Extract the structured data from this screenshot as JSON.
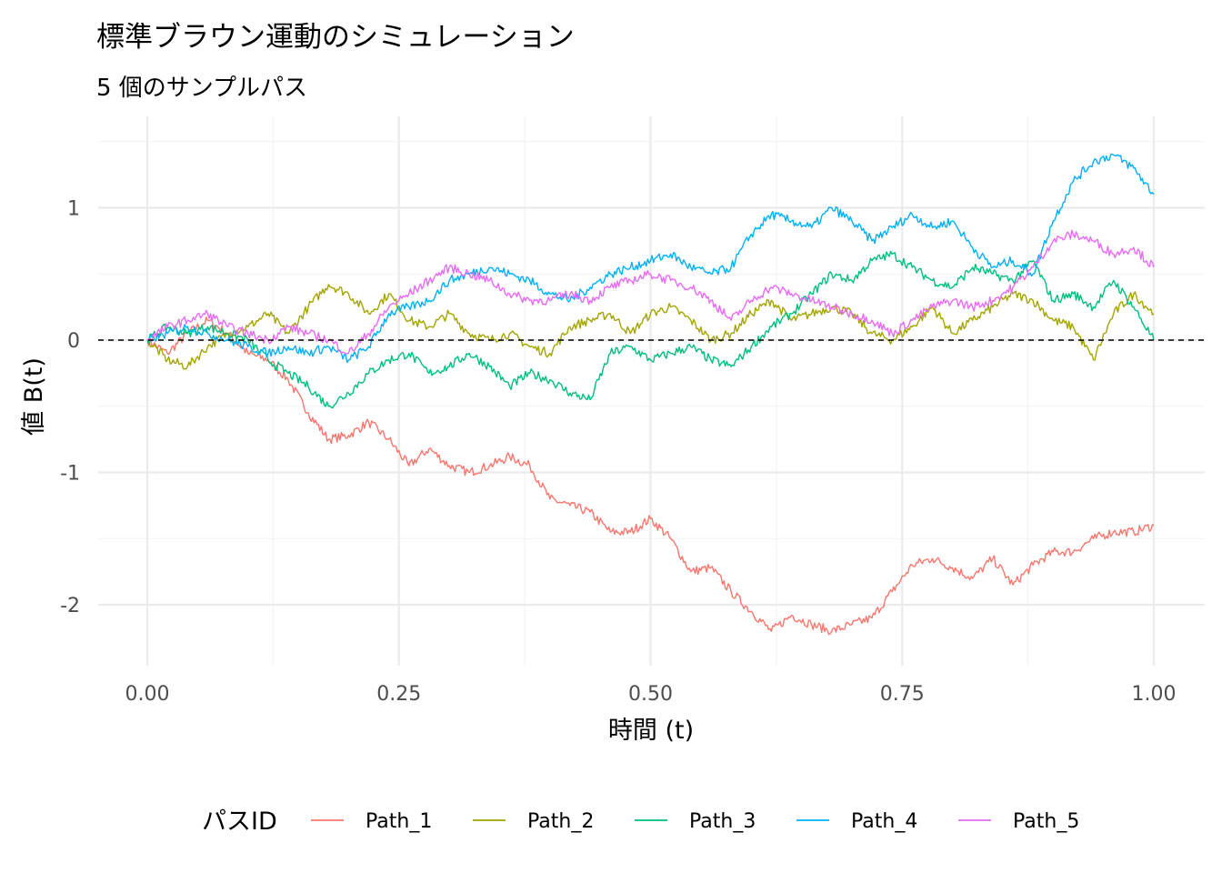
{
  "chart_data": {
    "type": "line",
    "title": "標準ブラウン運動のシミュレーション",
    "subtitle": "5 個のサンプルパス",
    "xlabel": "時間 (t)",
    "ylabel": "値 B(t)",
    "xlim": [
      0,
      1
    ],
    "ylim": [
      -2.45,
      1.6
    ],
    "x_ticks": [
      0,
      0.25,
      0.5,
      0.75,
      1
    ],
    "x_tick_labels": [
      "0.00",
      "0.25",
      "0.50",
      "0.75",
      "1.00"
    ],
    "y_ticks": [
      -2,
      -1,
      0,
      1
    ],
    "y_tick_labels": [
      "-2",
      "-1",
      "0",
      "1"
    ],
    "grid": true,
    "reference_line": {
      "y": 0,
      "style": "dashed",
      "color": "#000000"
    },
    "legend": {
      "title": "パスID",
      "position": "bottom"
    },
    "series": [
      {
        "name": "Path_1",
        "color": "#F8766D",
        "x": [
          0,
          0.02,
          0.04,
          0.06,
          0.08,
          0.1,
          0.12,
          0.14,
          0.16,
          0.18,
          0.2,
          0.22,
          0.24,
          0.26,
          0.28,
          0.3,
          0.32,
          0.34,
          0.36,
          0.38,
          0.4,
          0.42,
          0.44,
          0.46,
          0.48,
          0.5,
          0.52,
          0.54,
          0.56,
          0.58,
          0.6,
          0.62,
          0.64,
          0.66,
          0.68,
          0.7,
          0.72,
          0.74,
          0.76,
          0.78,
          0.8,
          0.82,
          0.84,
          0.86,
          0.88,
          0.9,
          0.92,
          0.94,
          0.96,
          0.98,
          1.0
        ],
        "y": [
          0.0,
          -0.1,
          0.05,
          0.15,
          0.05,
          -0.1,
          -0.15,
          -0.3,
          -0.55,
          -0.75,
          -0.72,
          -0.62,
          -0.75,
          -0.95,
          -0.82,
          -0.95,
          -1.0,
          -0.95,
          -0.88,
          -0.95,
          -1.2,
          -1.25,
          -1.3,
          -1.45,
          -1.45,
          -1.35,
          -1.5,
          -1.75,
          -1.72,
          -1.9,
          -2.05,
          -2.2,
          -2.08,
          -2.15,
          -2.2,
          -2.15,
          -2.1,
          -1.9,
          -1.7,
          -1.65,
          -1.72,
          -1.8,
          -1.65,
          -1.85,
          -1.7,
          -1.6,
          -1.6,
          -1.5,
          -1.45,
          -1.45,
          -1.4
        ]
      },
      {
        "name": "Path_2",
        "color": "#A3A500",
        "x": [
          0,
          0.02,
          0.04,
          0.06,
          0.08,
          0.1,
          0.12,
          0.14,
          0.16,
          0.18,
          0.2,
          0.22,
          0.24,
          0.26,
          0.28,
          0.3,
          0.32,
          0.34,
          0.36,
          0.38,
          0.4,
          0.42,
          0.44,
          0.46,
          0.48,
          0.5,
          0.52,
          0.54,
          0.56,
          0.58,
          0.6,
          0.62,
          0.64,
          0.66,
          0.68,
          0.7,
          0.72,
          0.74,
          0.76,
          0.78,
          0.8,
          0.82,
          0.84,
          0.86,
          0.88,
          0.9,
          0.92,
          0.94,
          0.96,
          0.98,
          1.0
        ],
        "y": [
          0.0,
          -0.15,
          -0.2,
          -0.05,
          0.05,
          0.1,
          0.2,
          0.05,
          0.25,
          0.42,
          0.35,
          0.2,
          0.35,
          0.15,
          0.1,
          0.2,
          0.05,
          0.0,
          0.05,
          -0.05,
          -0.1,
          0.1,
          0.15,
          0.2,
          0.05,
          0.2,
          0.25,
          0.15,
          0.0,
          0.05,
          0.2,
          0.3,
          0.15,
          0.2,
          0.25,
          0.2,
          0.05,
          0.0,
          0.1,
          0.25,
          0.05,
          0.15,
          0.25,
          0.35,
          0.3,
          0.15,
          0.1,
          -0.15,
          0.2,
          0.35,
          0.2
        ]
      },
      {
        "name": "Path_3",
        "color": "#00BF7D",
        "x": [
          0,
          0.02,
          0.04,
          0.06,
          0.08,
          0.1,
          0.12,
          0.14,
          0.16,
          0.18,
          0.2,
          0.22,
          0.24,
          0.26,
          0.28,
          0.3,
          0.32,
          0.34,
          0.36,
          0.38,
          0.4,
          0.42,
          0.44,
          0.46,
          0.48,
          0.5,
          0.52,
          0.54,
          0.56,
          0.58,
          0.6,
          0.62,
          0.64,
          0.66,
          0.68,
          0.7,
          0.72,
          0.74,
          0.76,
          0.78,
          0.8,
          0.82,
          0.84,
          0.86,
          0.88,
          0.9,
          0.92,
          0.94,
          0.96,
          0.98,
          1.0
        ],
        "y": [
          0.0,
          0.1,
          0.05,
          0.1,
          0.05,
          0.0,
          -0.15,
          -0.25,
          -0.35,
          -0.5,
          -0.4,
          -0.25,
          -0.15,
          -0.1,
          -0.25,
          -0.2,
          -0.1,
          -0.2,
          -0.35,
          -0.25,
          -0.3,
          -0.4,
          -0.45,
          -0.1,
          -0.05,
          -0.15,
          -0.1,
          -0.05,
          -0.15,
          -0.2,
          -0.05,
          0.1,
          0.2,
          0.35,
          0.5,
          0.45,
          0.6,
          0.65,
          0.55,
          0.45,
          0.4,
          0.55,
          0.5,
          0.45,
          0.6,
          0.3,
          0.35,
          0.25,
          0.45,
          0.25,
          0.0
        ]
      },
      {
        "name": "Path_4",
        "color": "#00B0F6",
        "x": [
          0,
          0.02,
          0.04,
          0.06,
          0.08,
          0.1,
          0.12,
          0.14,
          0.16,
          0.18,
          0.2,
          0.22,
          0.24,
          0.26,
          0.28,
          0.3,
          0.32,
          0.34,
          0.36,
          0.38,
          0.4,
          0.42,
          0.44,
          0.46,
          0.48,
          0.5,
          0.52,
          0.54,
          0.56,
          0.58,
          0.6,
          0.62,
          0.64,
          0.66,
          0.68,
          0.7,
          0.72,
          0.74,
          0.76,
          0.78,
          0.8,
          0.82,
          0.84,
          0.86,
          0.88,
          0.9,
          0.92,
          0.94,
          0.96,
          0.98,
          1.0
        ],
        "y": [
          0.0,
          0.05,
          0.1,
          0.05,
          0.0,
          -0.05,
          -0.1,
          -0.05,
          -0.1,
          -0.05,
          -0.15,
          -0.05,
          0.2,
          0.25,
          0.3,
          0.45,
          0.5,
          0.55,
          0.5,
          0.45,
          0.35,
          0.3,
          0.4,
          0.5,
          0.55,
          0.6,
          0.65,
          0.55,
          0.5,
          0.55,
          0.8,
          0.95,
          0.9,
          0.85,
          1.0,
          0.9,
          0.75,
          0.85,
          0.95,
          0.85,
          0.9,
          0.7,
          0.55,
          0.6,
          0.5,
          0.9,
          1.2,
          1.35,
          1.4,
          1.3,
          1.1
        ]
      },
      {
        "name": "Path_5",
        "color": "#E76BF3",
        "x": [
          0,
          0.02,
          0.04,
          0.06,
          0.08,
          0.1,
          0.12,
          0.14,
          0.16,
          0.18,
          0.2,
          0.22,
          0.24,
          0.26,
          0.28,
          0.3,
          0.32,
          0.34,
          0.36,
          0.38,
          0.4,
          0.42,
          0.44,
          0.46,
          0.48,
          0.5,
          0.52,
          0.54,
          0.56,
          0.58,
          0.6,
          0.62,
          0.64,
          0.66,
          0.68,
          0.7,
          0.72,
          0.74,
          0.76,
          0.78,
          0.8,
          0.82,
          0.84,
          0.86,
          0.88,
          0.9,
          0.92,
          0.94,
          0.96,
          0.98,
          1.0
        ],
        "y": [
          0.0,
          0.1,
          0.15,
          0.2,
          0.1,
          0.05,
          0.0,
          0.1,
          0.05,
          0.0,
          -0.1,
          0.05,
          0.25,
          0.35,
          0.45,
          0.55,
          0.5,
          0.45,
          0.35,
          0.3,
          0.3,
          0.35,
          0.3,
          0.4,
          0.45,
          0.5,
          0.45,
          0.4,
          0.3,
          0.15,
          0.3,
          0.4,
          0.35,
          0.3,
          0.25,
          0.2,
          0.15,
          0.05,
          0.15,
          0.25,
          0.3,
          0.25,
          0.3,
          0.4,
          0.55,
          0.75,
          0.8,
          0.75,
          0.65,
          0.7,
          0.55
        ]
      }
    ]
  }
}
